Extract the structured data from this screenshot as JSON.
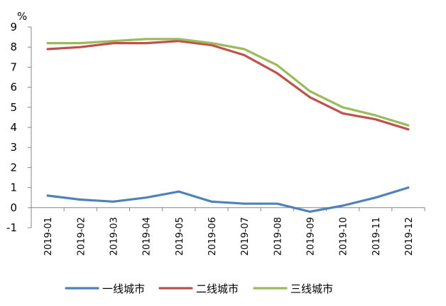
{
  "chart_data": {
    "type": "line",
    "title": "",
    "xlabel": "",
    "ylabel": "%",
    "categories": [
      "2019-01",
      "2019-02",
      "2019-03",
      "2019-04",
      "2019-05",
      "2019-06",
      "2019-07",
      "2019-08",
      "2019-09",
      "2019-10",
      "2019-11",
      "2019-12"
    ],
    "yticks": [
      "-1",
      "0",
      "1",
      "2",
      "3",
      "4",
      "5",
      "6",
      "7",
      "8",
      "9"
    ],
    "ylim": [
      -1,
      9
    ],
    "grid": false,
    "legend_position": "bottom",
    "series": [
      {
        "name": "一线城市",
        "color": "#4f81bd",
        "values": [
          0.6,
          0.4,
          0.3,
          0.5,
          0.8,
          0.3,
          0.2,
          0.2,
          -0.2,
          0.1,
          0.5,
          1.0
        ]
      },
      {
        "name": "二线城市",
        "color": "#c0504d",
        "values": [
          7.9,
          8.0,
          8.2,
          8.2,
          8.3,
          8.1,
          7.6,
          6.7,
          5.5,
          4.7,
          4.4,
          3.9
        ]
      },
      {
        "name": "三线城市",
        "color": "#9bbb59",
        "values": [
          8.2,
          8.2,
          8.3,
          8.4,
          8.4,
          8.2,
          7.9,
          7.1,
          5.8,
          5.0,
          4.6,
          4.1
        ]
      }
    ]
  }
}
